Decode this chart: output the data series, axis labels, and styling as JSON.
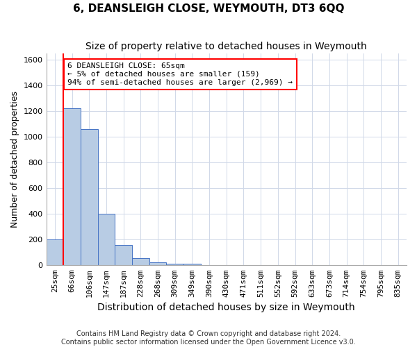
{
  "title": "6, DEANSLEIGH CLOSE, WEYMOUTH, DT3 6QQ",
  "subtitle": "Size of property relative to detached houses in Weymouth",
  "xlabel": "Distribution of detached houses by size in Weymouth",
  "ylabel": "Number of detached properties",
  "footer_line1": "Contains HM Land Registry data © Crown copyright and database right 2024.",
  "footer_line2": "Contains public sector information licensed under the Open Government Licence v3.0.",
  "bin_labels": [
    "25sqm",
    "66sqm",
    "106sqm",
    "147sqm",
    "187sqm",
    "228sqm",
    "268sqm",
    "309sqm",
    "349sqm",
    "390sqm",
    "430sqm",
    "471sqm",
    "511sqm",
    "552sqm",
    "592sqm",
    "633sqm",
    "673sqm",
    "714sqm",
    "754sqm",
    "795sqm",
    "835sqm"
  ],
  "bar_values": [
    200,
    1220,
    1060,
    400,
    160,
    55,
    25,
    15,
    10,
    0,
    0,
    0,
    0,
    0,
    0,
    0,
    0,
    0,
    0,
    0,
    0
  ],
  "bar_color": "#b8cce4",
  "bar_edge_color": "#4472c4",
  "ylim": [
    0,
    1650
  ],
  "yticks": [
    0,
    200,
    400,
    600,
    800,
    1000,
    1200,
    1400,
    1600
  ],
  "redline_x": 1,
  "annotation_title": "6 DEANSLEIGH CLOSE: 65sqm",
  "annotation_line2": "← 5% of detached houses are smaller (159)",
  "annotation_line3": "94% of semi-detached houses are larger (2,969) →",
  "grid_color": "#d0d8e8",
  "background_color": "#ffffff",
  "title_fontsize": 11,
  "subtitle_fontsize": 10,
  "axis_label_fontsize": 9,
  "tick_fontsize": 8,
  "annotation_fontsize": 8,
  "footer_fontsize": 7
}
